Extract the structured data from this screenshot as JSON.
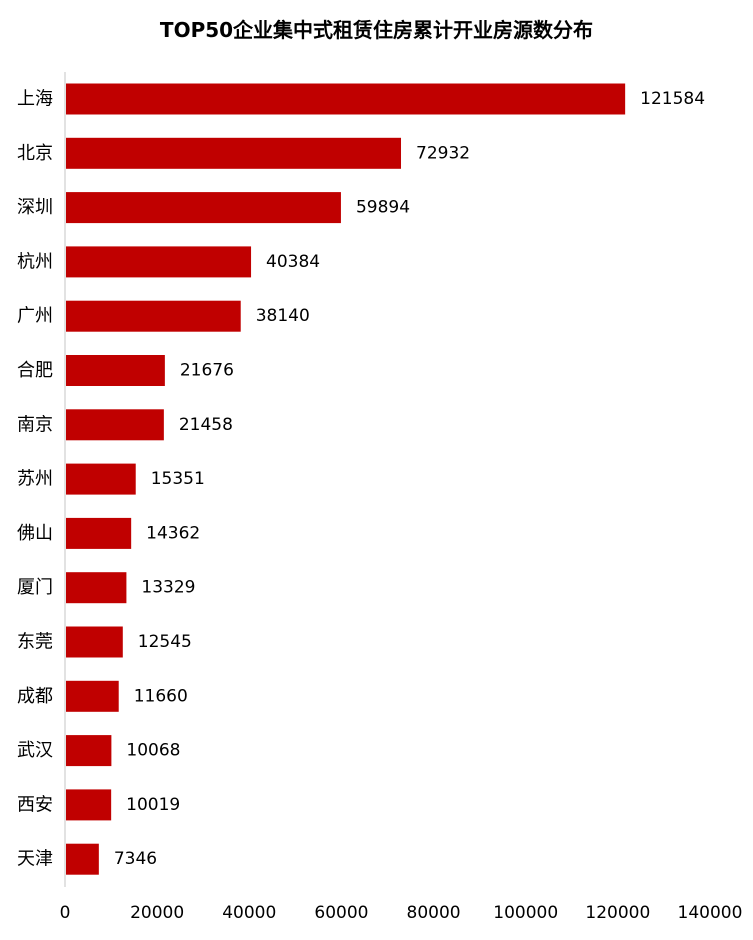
{
  "colors": {
    "bar": "#c00000",
    "axis": "#d9d9d9",
    "text": "#000000"
  },
  "chart_data": {
    "type": "bar",
    "orientation": "horizontal",
    "title": "TOP50企业集中式租赁住房累计开业房源数分布",
    "xlabel": "",
    "ylabel": "",
    "xlim": [
      0,
      140000
    ],
    "x_ticks": [
      0,
      20000,
      40000,
      60000,
      80000,
      100000,
      120000,
      140000
    ],
    "grid": false,
    "legend": "none",
    "data_labels": true,
    "categories": [
      "上海",
      "北京",
      "深圳",
      "杭州",
      "广州",
      "合肥",
      "南京",
      "苏州",
      "佛山",
      "厦门",
      "东莞",
      "成都",
      "武汉",
      "西安",
      "天津"
    ],
    "values": [
      121584,
      72932,
      59894,
      40384,
      38140,
      21676,
      21458,
      15351,
      14362,
      13329,
      12545,
      11660,
      10068,
      10019,
      7346
    ]
  }
}
